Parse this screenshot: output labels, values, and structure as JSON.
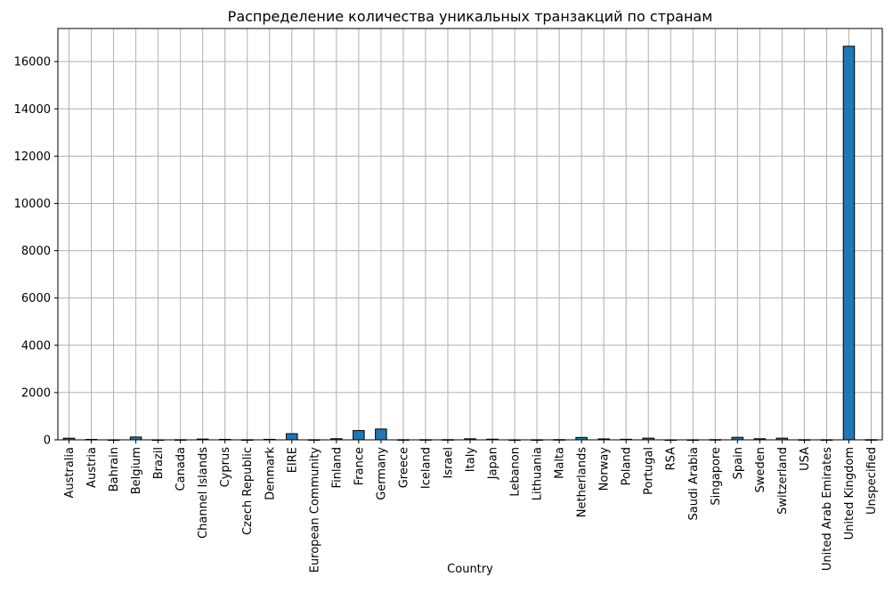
{
  "chart_data": {
    "type": "bar",
    "title": "Распределение количества уникальных транзакций по странам",
    "xlabel": "Country",
    "ylabel": "",
    "ylim": [
      0,
      17400
    ],
    "yticks": [
      0,
      2000,
      4000,
      6000,
      8000,
      10000,
      12000,
      14000,
      16000
    ],
    "grid": true,
    "bar_color": "#1f77b4",
    "edge_color": "#000000",
    "grid_color": "#b0b0b0",
    "categories": [
      "Australia",
      "Austria",
      "Bahrain",
      "Belgium",
      "Brazil",
      "Canada",
      "Channel Islands",
      "Cyprus",
      "Czech Republic",
      "Denmark",
      "EIRE",
      "European Community",
      "Finland",
      "France",
      "Germany",
      "Greece",
      "Iceland",
      "Israel",
      "Italy",
      "Japan",
      "Lebanon",
      "Lithuania",
      "Malta",
      "Netherlands",
      "Norway",
      "Poland",
      "Portugal",
      "RSA",
      "Saudi Arabia",
      "Singapore",
      "Spain",
      "Sweden",
      "Switzerland",
      "USA",
      "United Arab Emirates",
      "United Kingdom",
      "Unspecified"
    ],
    "values": [
      69,
      19,
      2,
      119,
      1,
      6,
      33,
      20,
      5,
      21,
      260,
      5,
      48,
      392,
      457,
      6,
      7,
      9,
      45,
      28,
      1,
      4,
      10,
      101,
      40,
      24,
      71,
      1,
      2,
      10,
      105,
      46,
      71,
      7,
      5,
      16649,
      8
    ]
  }
}
